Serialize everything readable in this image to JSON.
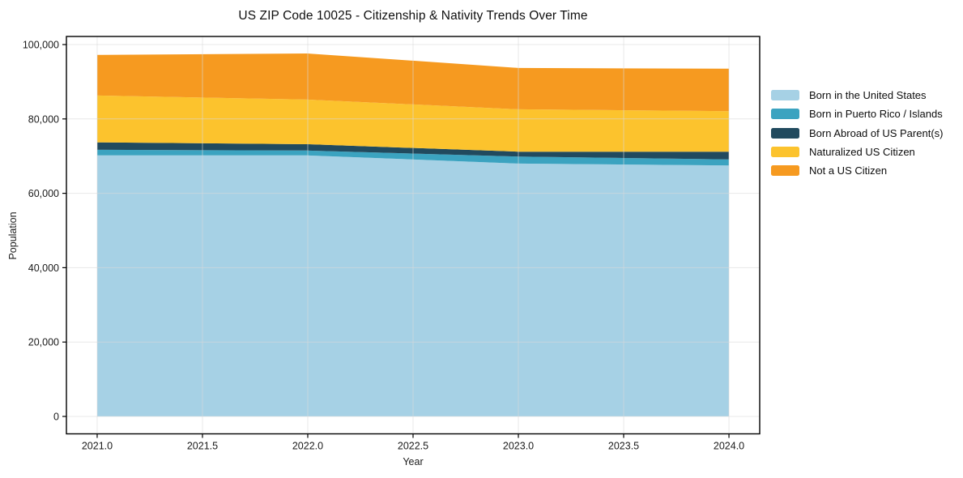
{
  "chart": {
    "title": "US ZIP Code 10025 - Citizenship & Nativity Trends Over Time",
    "xlabel": "Year",
    "ylabel": "Population"
  },
  "chart_data": {
    "type": "area",
    "stacked": true,
    "title": "US ZIP Code 10025 - Citizenship & Nativity Trends Over Time",
    "xlabel": "Year",
    "ylabel": "Population",
    "grid": true,
    "legend_position": "right",
    "x": [
      2021,
      2022,
      2023,
      2024
    ],
    "series": [
      {
        "name": "Born in the United States",
        "color": "#a6d1e5",
        "values": [
          70200,
          70200,
          68000,
          67500
        ]
      },
      {
        "name": "Born in Puerto Rico / Islands",
        "color": "#3ba3c0",
        "values": [
          1500,
          1300,
          1900,
          1600
        ]
      },
      {
        "name": "Born Abroad of US Parent(s)",
        "color": "#214a5e",
        "values": [
          2000,
          1700,
          1300,
          2100
        ]
      },
      {
        "name": "Naturalized US Citizen",
        "color": "#fcc32d",
        "values": [
          12600,
          12000,
          11400,
          10900
        ]
      },
      {
        "name": "Not a US Citizen",
        "color": "#f69a20",
        "values": [
          10900,
          12400,
          11100,
          11400
        ]
      }
    ],
    "totals": [
      97200,
      97600,
      93700,
      93500
    ],
    "xticks": [
      2021.0,
      2021.5,
      2022.0,
      2022.5,
      2023.0,
      2023.5,
      2024.0
    ],
    "xtick_labels": [
      "2021.0",
      "2021.5",
      "2022.0",
      "2022.5",
      "2023.0",
      "2023.5",
      "2024.0"
    ],
    "yticks": [
      0,
      20000,
      40000,
      60000,
      80000,
      100000
    ],
    "ytick_labels": [
      "0",
      "20,000",
      "40,000",
      "60,000",
      "80,000",
      "100,000"
    ],
    "xlim": [
      2020.854,
      2024.146
    ],
    "ylim": [
      -4684,
      102178
    ],
    "axis_color": "#000000",
    "grid_color": "#d9d9d9"
  }
}
